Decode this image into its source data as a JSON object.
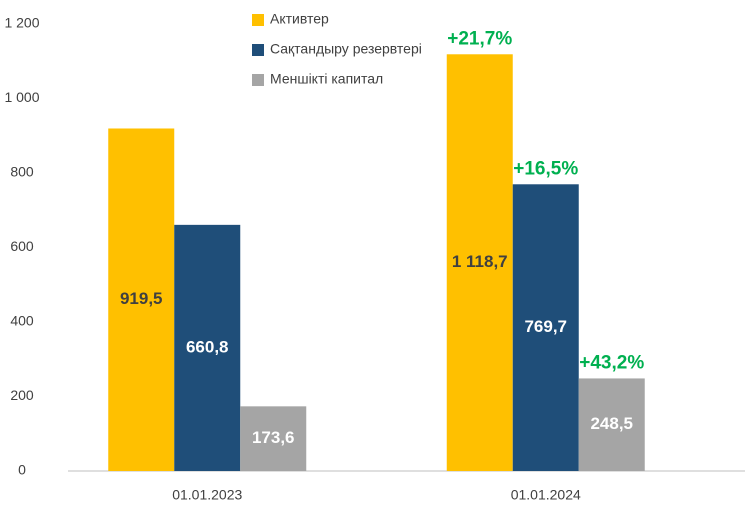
{
  "chart_data": {
    "type": "bar",
    "categories": [
      "01.01.2023",
      "01.01.2024"
    ],
    "series": [
      {
        "name": "Активтер",
        "color": "#FFC000",
        "label_color": "#404040",
        "values": [
          919.5,
          1118.7
        ],
        "value_labels": [
          "919,5",
          "1 118,7"
        ],
        "growth_label": "+21,7%"
      },
      {
        "name": "Сақтандыру резервтері",
        "color": "#1F4E79",
        "label_color": "#FFFFFF",
        "values": [
          660.8,
          769.7
        ],
        "value_labels": [
          "660,8",
          "769,7"
        ],
        "growth_label": "+16,5%"
      },
      {
        "name": "Меншікті капитал",
        "color": "#A5A5A5",
        "label_color": "#FFFFFF",
        "values": [
          173.6,
          248.5
        ],
        "value_labels": [
          "173,6",
          "248,5"
        ],
        "growth_label": "+43,2%"
      }
    ],
    "growth_color": "#00B050",
    "ylim": [
      0,
      1200
    ],
    "yticks": [
      0,
      200,
      400,
      600,
      800,
      {
        "value": 1000,
        "label": "1 000"
      },
      {
        "value": 1200,
        "label": "1 200"
      }
    ],
    "grid": false
  }
}
